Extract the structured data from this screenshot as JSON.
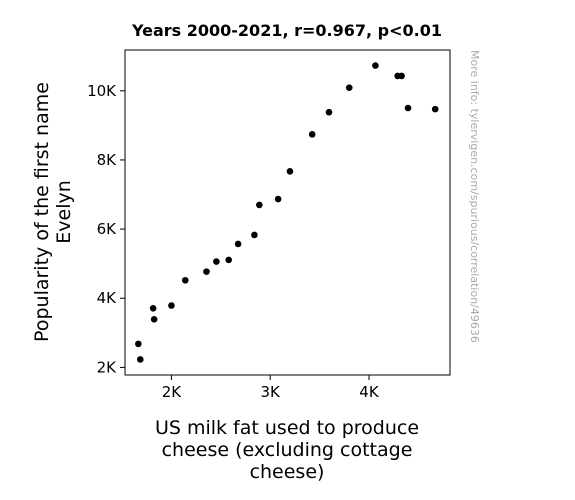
{
  "chart_data": {
    "type": "scatter",
    "title": "Years 2000-2021, r=0.967, p<0.01",
    "xlabel_lines": [
      "US milk fat used to produce",
      "cheese (excluding cottage",
      "cheese)"
    ],
    "ylabel_lines": [
      "Popularity of the first name",
      "Evelyn"
    ],
    "xlim": [
      1530,
      4820
    ],
    "ylim": [
      1780,
      11180
    ],
    "x_ticks": [
      {
        "value": 2000,
        "label": "2K"
      },
      {
        "value": 3000,
        "label": "3K"
      },
      {
        "value": 4000,
        "label": "4K"
      }
    ],
    "y_ticks": [
      {
        "value": 2000,
        "label": "2K"
      },
      {
        "value": 4000,
        "label": "4K"
      },
      {
        "value": 6000,
        "label": "6K"
      },
      {
        "value": 8000,
        "label": "8K"
      },
      {
        "value": 10000,
        "label": "10K"
      }
    ],
    "grid": false,
    "marker_color": "#000000",
    "watermark": "More info: tylervigen.com/spurious/correlation/49636",
    "points": [
      {
        "x": 1665,
        "y": 2680
      },
      {
        "x": 1685,
        "y": 2230
      },
      {
        "x": 1815,
        "y": 3710
      },
      {
        "x": 1825,
        "y": 3390
      },
      {
        "x": 2000,
        "y": 3790
      },
      {
        "x": 2140,
        "y": 4520
      },
      {
        "x": 2355,
        "y": 4770
      },
      {
        "x": 2455,
        "y": 5060
      },
      {
        "x": 2580,
        "y": 5110
      },
      {
        "x": 2675,
        "y": 5570
      },
      {
        "x": 2840,
        "y": 5830
      },
      {
        "x": 2890,
        "y": 6700
      },
      {
        "x": 3080,
        "y": 6870
      },
      {
        "x": 3200,
        "y": 7670
      },
      {
        "x": 3425,
        "y": 8740
      },
      {
        "x": 3595,
        "y": 9380
      },
      {
        "x": 3800,
        "y": 10090
      },
      {
        "x": 4065,
        "y": 10730
      },
      {
        "x": 4290,
        "y": 10430
      },
      {
        "x": 4330,
        "y": 10430
      },
      {
        "x": 4395,
        "y": 9500
      },
      {
        "x": 4670,
        "y": 9470
      }
    ]
  }
}
